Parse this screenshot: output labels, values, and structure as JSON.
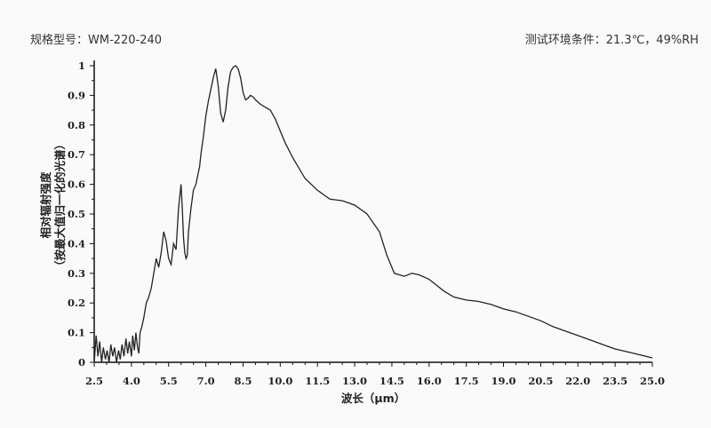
{
  "header": {
    "model_label": "规格型号：WM-220-240",
    "env_label": "测试环境条件：21.3℃，49%RH"
  },
  "colors": {
    "background": "#fafafa",
    "axis": "#111111",
    "line": "#222222"
  },
  "chart_data": {
    "type": "line",
    "title": "",
    "xlabel": "波长（μm）",
    "ylabel_line1": "相对辐射强度",
    "ylabel_line2": "（按最大值归一化的光谱）",
    "xlim": [
      2.5,
      25.0
    ],
    "ylim": [
      0,
      1
    ],
    "x_ticks": [
      "2.5",
      "4.0",
      "5.5",
      "7.0",
      "8.5",
      "10.0",
      "11.5",
      "13.0",
      "14.5",
      "16.0",
      "17.5",
      "19.0",
      "20.5",
      "22.0",
      "23.5",
      "25.0"
    ],
    "y_ticks": [
      "0",
      "0.1",
      "0.2",
      "0.3",
      "0.4",
      "0.5",
      "0.6",
      "0.7",
      "0.8",
      "0.9",
      "1"
    ],
    "grid": false,
    "legend": false,
    "series": [
      {
        "x": [
          2.5,
          2.58,
          2.65,
          2.72,
          2.8,
          2.87,
          2.95,
          3.02,
          3.1,
          3.17,
          3.25,
          3.32,
          3.4,
          3.48,
          3.55,
          3.62,
          3.7,
          3.78,
          3.85,
          3.92,
          4.0,
          4.05,
          4.12,
          4.18,
          4.25,
          4.3,
          4.35,
          4.42,
          4.5,
          4.6,
          4.7,
          4.8,
          4.9,
          5.0,
          5.1,
          5.2,
          5.3,
          5.4,
          5.5,
          5.6,
          5.7,
          5.8,
          5.9,
          6.0,
          6.05,
          6.1,
          6.15,
          6.2,
          6.25,
          6.3,
          6.4,
          6.5,
          6.6,
          6.7,
          6.75,
          6.8,
          6.9,
          7.0,
          7.1,
          7.2,
          7.3,
          7.4,
          7.5,
          7.6,
          7.7,
          7.8,
          7.9,
          8.0,
          8.1,
          8.2,
          8.3,
          8.4,
          8.5,
          8.6,
          8.7,
          8.8,
          8.9,
          9.0,
          9.2,
          9.4,
          9.6,
          9.8,
          10.0,
          10.2,
          10.5,
          11.0,
          11.5,
          12.0,
          12.5,
          13.0,
          13.5,
          14.0,
          14.3,
          14.6,
          15.0,
          15.3,
          15.6,
          16.0,
          16.3,
          16.6,
          17.0,
          17.5,
          18.0,
          18.5,
          19.0,
          19.5,
          20.0,
          20.5,
          21.0,
          21.5,
          22.0,
          22.5,
          23.0,
          23.5,
          24.0,
          24.5,
          25.0
        ],
        "y": [
          0.0,
          0.09,
          0.02,
          0.07,
          0.0,
          0.05,
          0.01,
          0.04,
          0.0,
          0.06,
          0.02,
          0.05,
          0.0,
          0.04,
          0.01,
          0.06,
          0.02,
          0.08,
          0.03,
          0.07,
          0.02,
          0.09,
          0.04,
          0.1,
          0.05,
          0.03,
          0.1,
          0.12,
          0.15,
          0.2,
          0.22,
          0.25,
          0.3,
          0.35,
          0.32,
          0.37,
          0.44,
          0.41,
          0.35,
          0.33,
          0.4,
          0.38,
          0.52,
          0.6,
          0.52,
          0.42,
          0.37,
          0.35,
          0.36,
          0.44,
          0.52,
          0.58,
          0.6,
          0.64,
          0.66,
          0.7,
          0.76,
          0.83,
          0.88,
          0.92,
          0.96,
          0.99,
          0.93,
          0.84,
          0.81,
          0.85,
          0.93,
          0.98,
          0.995,
          1.0,
          0.99,
          0.96,
          0.91,
          0.885,
          0.89,
          0.9,
          0.895,
          0.885,
          0.87,
          0.86,
          0.85,
          0.82,
          0.78,
          0.74,
          0.69,
          0.62,
          0.58,
          0.55,
          0.545,
          0.53,
          0.5,
          0.44,
          0.36,
          0.3,
          0.29,
          0.3,
          0.295,
          0.28,
          0.26,
          0.24,
          0.22,
          0.21,
          0.205,
          0.195,
          0.18,
          0.17,
          0.155,
          0.14,
          0.12,
          0.105,
          0.09,
          0.075,
          0.06,
          0.045,
          0.035,
          0.025,
          0.015
        ]
      }
    ]
  }
}
